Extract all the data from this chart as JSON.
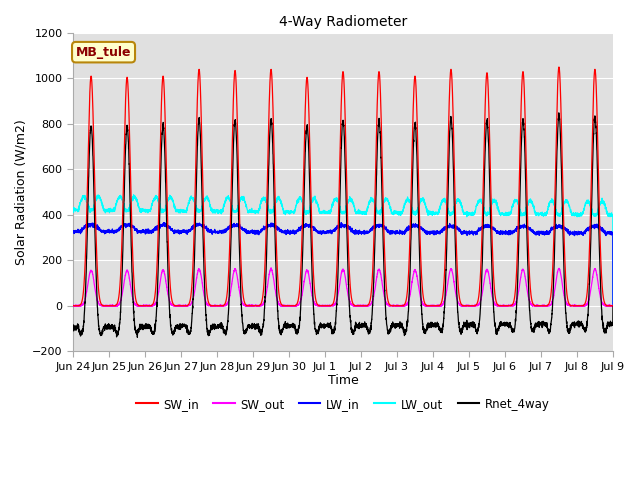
{
  "title": "4-Way Radiometer",
  "xlabel": "Time",
  "ylabel": "Solar Radiation (W/m2)",
  "ylim": [
    -200,
    1200
  ],
  "station_label": "MB_tule",
  "tick_labels": [
    "Jun 24",
    "Jun 25",
    "Jun 26",
    "Jun 27",
    "Jun 28",
    "Jun 29",
    "Jun 30",
    "Jul 1",
    "Jul 2",
    "Jul 3",
    "Jul 4",
    "Jul 5",
    "Jul 6",
    "Jul 7",
    "Jul 8",
    "Jul 9"
  ],
  "colors": {
    "SW_in": "#FF0000",
    "SW_out": "#FF00FF",
    "LW_in": "#0000FF",
    "LW_out": "#00FFFF",
    "Rnet_4way": "#000000"
  },
  "legend_labels": [
    "SW_in",
    "SW_out",
    "LW_in",
    "LW_out",
    "Rnet_4way"
  ],
  "num_days": 15,
  "points_per_day": 288,
  "SW_in_peaks": [
    1010,
    1005,
    1010,
    1040,
    1035,
    1040,
    1005,
    1030,
    1030,
    1010,
    1040,
    1025,
    1030,
    1050,
    1040
  ],
  "LW_out_base": 400,
  "LW_in_base": 320,
  "yticks": [
    -200,
    0,
    200,
    400,
    600,
    800,
    1000,
    1200
  ],
  "grid_color": "#FFFFFF",
  "bg_color": "#E0E0E0",
  "fig_color": "#FFFFFF",
  "title_fontsize": 10,
  "axis_fontsize": 9,
  "tick_fontsize": 8
}
